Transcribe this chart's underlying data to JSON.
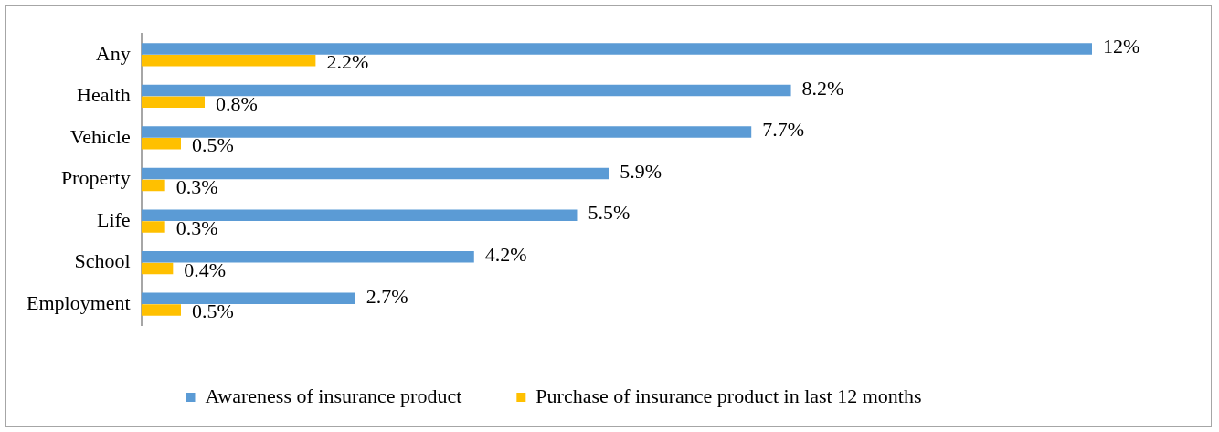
{
  "chart_data": {
    "type": "bar",
    "orientation": "horizontal",
    "legend": "bottom",
    "categories": [
      "Any",
      "Health",
      "Vehicle",
      "Property",
      "Life",
      "School",
      "Employment"
    ],
    "series": [
      {
        "name": "Awareness of insurance product",
        "color": "#5b9bd5",
        "values": [
          12,
          8.2,
          7.7,
          5.9,
          5.5,
          4.2,
          2.7
        ],
        "value_labels": [
          "12%",
          "8.2%",
          "7.7%",
          "5.9%",
          "5.5%",
          "4.2%",
          "2.7%"
        ]
      },
      {
        "name": "Purchase of insurance product in last 12 months",
        "color": "#ffc000",
        "values": [
          2.2,
          0.8,
          0.5,
          0.3,
          0.3,
          0.4,
          0.5
        ],
        "value_labels": [
          "2.2%",
          "0.8%",
          "0.5%",
          "0.3%",
          "0.3%",
          "0.4%",
          "0.5%"
        ]
      }
    ]
  }
}
